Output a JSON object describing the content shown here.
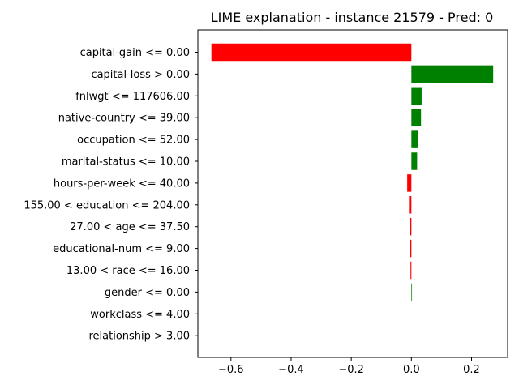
{
  "chart_data": {
    "type": "bar",
    "orientation": "horizontal",
    "title": "LIME explanation - instance 21579 - Pred: 0",
    "xlabel": "",
    "ylabel": "",
    "xlim": [
      -0.71,
      0.32
    ],
    "grid": false,
    "legend": "none",
    "x_ticks": [
      -0.6,
      -0.4,
      -0.2,
      0.0,
      0.2
    ],
    "x_tick_labels": [
      "−0.6",
      "−0.4",
      "−0.2",
      "0.0",
      "0.2"
    ],
    "categories": [
      "capital-gain <= 0.00",
      "capital-loss > 0.00",
      "fnlwgt <= 117606.00",
      "native-country <= 39.00",
      "occupation <= 52.00",
      "marital-status <= 10.00",
      "hours-per-week <= 40.00",
      "155.00 < education <= 204.00",
      "27.00 < age <= 37.50",
      "educational-num <= 9.00",
      "13.00 < race <= 16.00",
      "gender <= 0.00",
      "workclass <= 4.00",
      "relationship > 3.00"
    ],
    "values": [
      -0.665,
      0.272,
      0.034,
      0.032,
      0.021,
      0.019,
      -0.014,
      -0.008,
      -0.006,
      -0.005,
      -0.003,
      0.002,
      0.0,
      0.0
    ],
    "positive_color": "#008000",
    "negative_color": "#ff0000"
  }
}
